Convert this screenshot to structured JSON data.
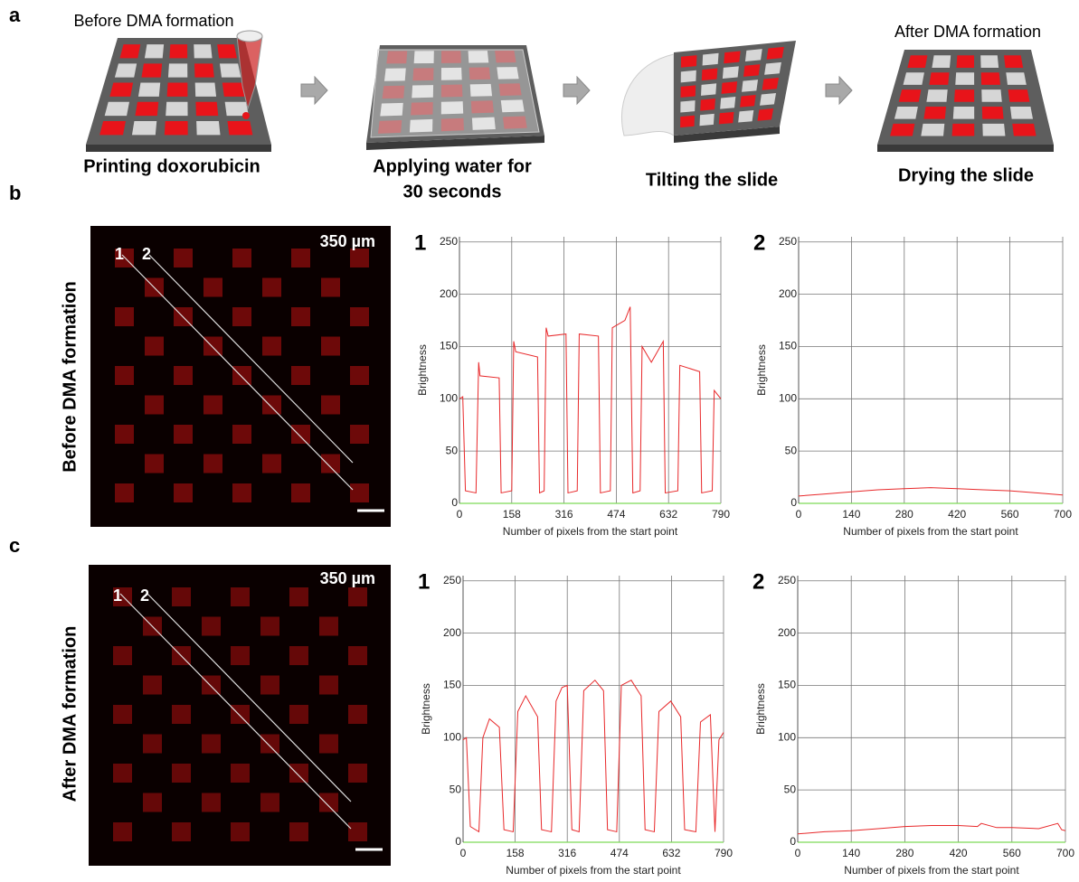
{
  "panel_labels": [
    "a",
    "b",
    "c"
  ],
  "schematic": {
    "before_label": "Before DMA formation",
    "after_label": "After DMA formation",
    "steps": [
      [
        "Printing doxorubicin"
      ],
      [
        "Applying water for",
        "30 seconds"
      ],
      [
        "Tilting the slide"
      ],
      [
        "Drying the slide"
      ]
    ]
  },
  "images": [
    {
      "row_label": "Before DMA formation",
      "scale": "350 µm",
      "lines": [
        "1",
        "2"
      ]
    },
    {
      "row_label": "After DMA formation",
      "scale": "350 µm",
      "lines": [
        "1",
        "2"
      ]
    }
  ],
  "chart_data": [
    {
      "type": "line",
      "label": "1",
      "ylabel": "Brightness",
      "xlabel": "Number of pixels from the start point",
      "color": "#e8282a",
      "grid": true,
      "xlim": [
        0,
        790
      ],
      "ylim": [
        0,
        255
      ],
      "xticks": [
        0,
        158,
        316,
        474,
        632,
        790
      ],
      "yticks": [
        0,
        50,
        100,
        150,
        200,
        250
      ],
      "x": [
        0,
        10,
        18,
        50,
        58,
        62,
        120,
        126,
        158,
        164,
        170,
        236,
        242,
        256,
        262,
        268,
        322,
        328,
        356,
        362,
        420,
        426,
        456,
        462,
        500,
        516,
        524,
        546,
        552,
        580,
        616,
        622,
        660,
        666,
        726,
        732,
        764,
        770,
        790
      ],
      "values": [
        100,
        102,
        12,
        10,
        135,
        122,
        120,
        10,
        12,
        155,
        145,
        140,
        10,
        12,
        168,
        160,
        162,
        10,
        12,
        162,
        160,
        10,
        12,
        168,
        175,
        188,
        10,
        12,
        150,
        135,
        155,
        10,
        12,
        132,
        126,
        10,
        12,
        108,
        100
      ]
    },
    {
      "type": "line",
      "label": "2",
      "ylabel": "Brightness",
      "xlabel": "Number of pixels from the start point",
      "color": "#e8282a",
      "grid": true,
      "xlim": [
        0,
        700
      ],
      "ylim": [
        0,
        255
      ],
      "xticks": [
        0,
        140,
        280,
        420,
        560,
        700
      ],
      "yticks": [
        0,
        50,
        100,
        150,
        200,
        250
      ],
      "x": [
        0,
        70,
        140,
        210,
        280,
        350,
        420,
        490,
        560,
        630,
        700
      ],
      "values": [
        7,
        9,
        11,
        13,
        14,
        15,
        14,
        13,
        12,
        10,
        8
      ]
    },
    {
      "type": "line",
      "label": "1",
      "ylabel": "Brightness",
      "xlabel": "Number of pixels from the start point",
      "color": "#e8282a",
      "grid": true,
      "xlim": [
        0,
        790
      ],
      "ylim": [
        0,
        255
      ],
      "xticks": [
        0,
        158,
        316,
        474,
        632,
        790
      ],
      "yticks": [
        0,
        50,
        100,
        150,
        200,
        250
      ],
      "x": [
        0,
        10,
        22,
        48,
        60,
        80,
        110,
        124,
        152,
        166,
        190,
        226,
        238,
        268,
        282,
        300,
        316,
        330,
        352,
        366,
        400,
        426,
        438,
        466,
        480,
        510,
        540,
        552,
        580,
        594,
        630,
        660,
        672,
        706,
        720,
        750,
        764,
        776,
        790
      ],
      "values": [
        98,
        100,
        15,
        10,
        100,
        118,
        110,
        12,
        10,
        125,
        140,
        120,
        12,
        10,
        135,
        148,
        150,
        12,
        10,
        145,
        155,
        145,
        12,
        10,
        150,
        155,
        140,
        12,
        10,
        125,
        135,
        120,
        12,
        10,
        115,
        122,
        10,
        98,
        105
      ]
    },
    {
      "type": "line",
      "label": "2",
      "ylabel": "Brightness",
      "xlabel": "Number of pixels from the start point",
      "color": "#e8282a",
      "grid": true,
      "xlim": [
        0,
        700
      ],
      "ylim": [
        0,
        255
      ],
      "xticks": [
        0,
        140,
        280,
        420,
        560,
        700
      ],
      "yticks": [
        0,
        50,
        100,
        150,
        200,
        250
      ],
      "x": [
        0,
        70,
        140,
        210,
        280,
        350,
        420,
        470,
        480,
        520,
        560,
        630,
        680,
        690,
        700
      ],
      "values": [
        8,
        10,
        11,
        13,
        15,
        16,
        16,
        15,
        18,
        14,
        14,
        13,
        18,
        12,
        11
      ]
    }
  ]
}
